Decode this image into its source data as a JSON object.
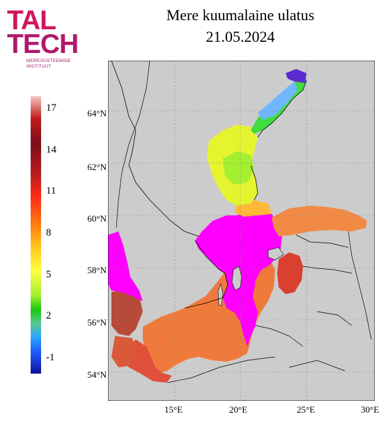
{
  "logo": {
    "line1": "TAL",
    "line2": "TECH",
    "subtitle_line1": "MERESÜSTEEMIDE",
    "subtitle_line2": "INSTITUUT"
  },
  "title": {
    "line1": "Mere kuumalaine ulatus",
    "line2": "21.05.2024"
  },
  "colorbar": {
    "ticks": [
      "17",
      "14",
      "11",
      "8",
      "5",
      "2",
      "-1"
    ]
  },
  "axes": {
    "lat_ticks": [
      "64°N",
      "62°N",
      "60°N",
      "58°N",
      "56°N",
      "54°N"
    ],
    "lon_ticks": [
      "15°E",
      "20°E",
      "25°E",
      "30°E"
    ]
  },
  "colors": {
    "land": "#cccccc",
    "heatwave": "#ff00ff",
    "accent": "#d0165e"
  }
}
